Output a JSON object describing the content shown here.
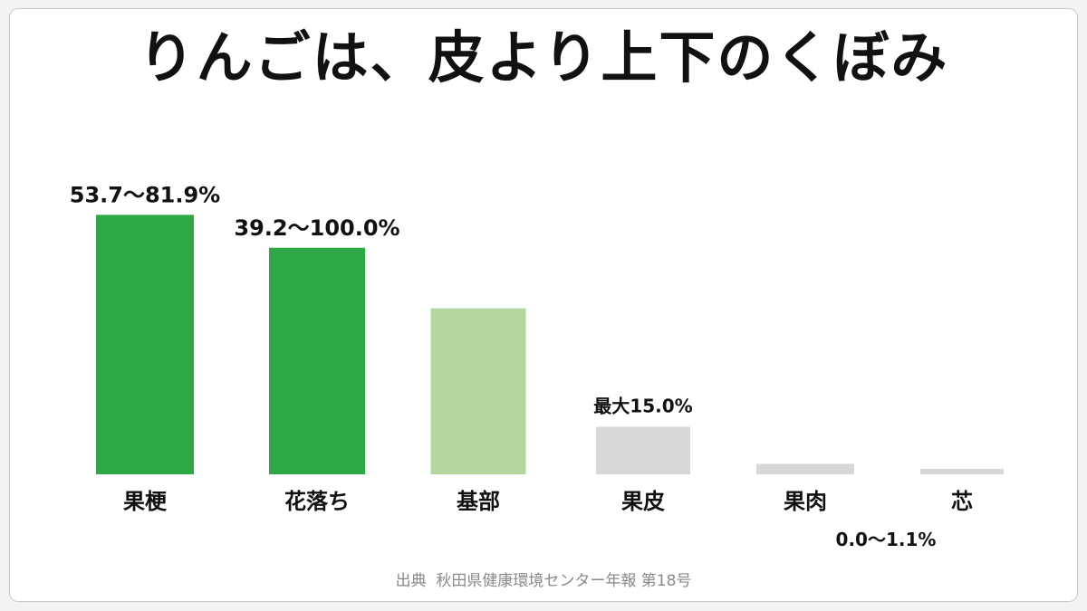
{
  "title": "りんごは、皮より上下のくぼみ",
  "source": "出典  秋田県健康環境センター年報 第18号",
  "colors": {
    "dark_green": "#2ea844",
    "light_green": "#b3d79c",
    "gray": "#d7d7d7",
    "text": "#111111",
    "source": "#8a8a8a"
  },
  "chart_data": {
    "type": "bar",
    "title": "りんごは、皮より上下のくぼみ",
    "xlabel": "",
    "ylabel": "",
    "ylim": [
      0,
      100
    ],
    "grid": false,
    "legend": "none",
    "categories": [
      "果梗",
      "花落ち",
      "基部",
      "果皮",
      "果肉",
      "芯"
    ],
    "values": [
      81.9,
      71.5,
      52.4,
      15.0,
      3.3,
      1.1
    ],
    "colors": [
      "dark_green",
      "dark_green",
      "light_green",
      "gray",
      "gray",
      "gray"
    ],
    "annotations": [
      {
        "bar": 0,
        "text": "53.7〜81.9%",
        "size": "large"
      },
      {
        "bar": 1,
        "text": "39.2〜100.0%",
        "size": "large"
      },
      {
        "bar": 3,
        "text": "最大15.0%",
        "size": "small"
      },
      {
        "bar": 5,
        "text": "0.0〜1.1%",
        "size": "small"
      }
    ]
  }
}
